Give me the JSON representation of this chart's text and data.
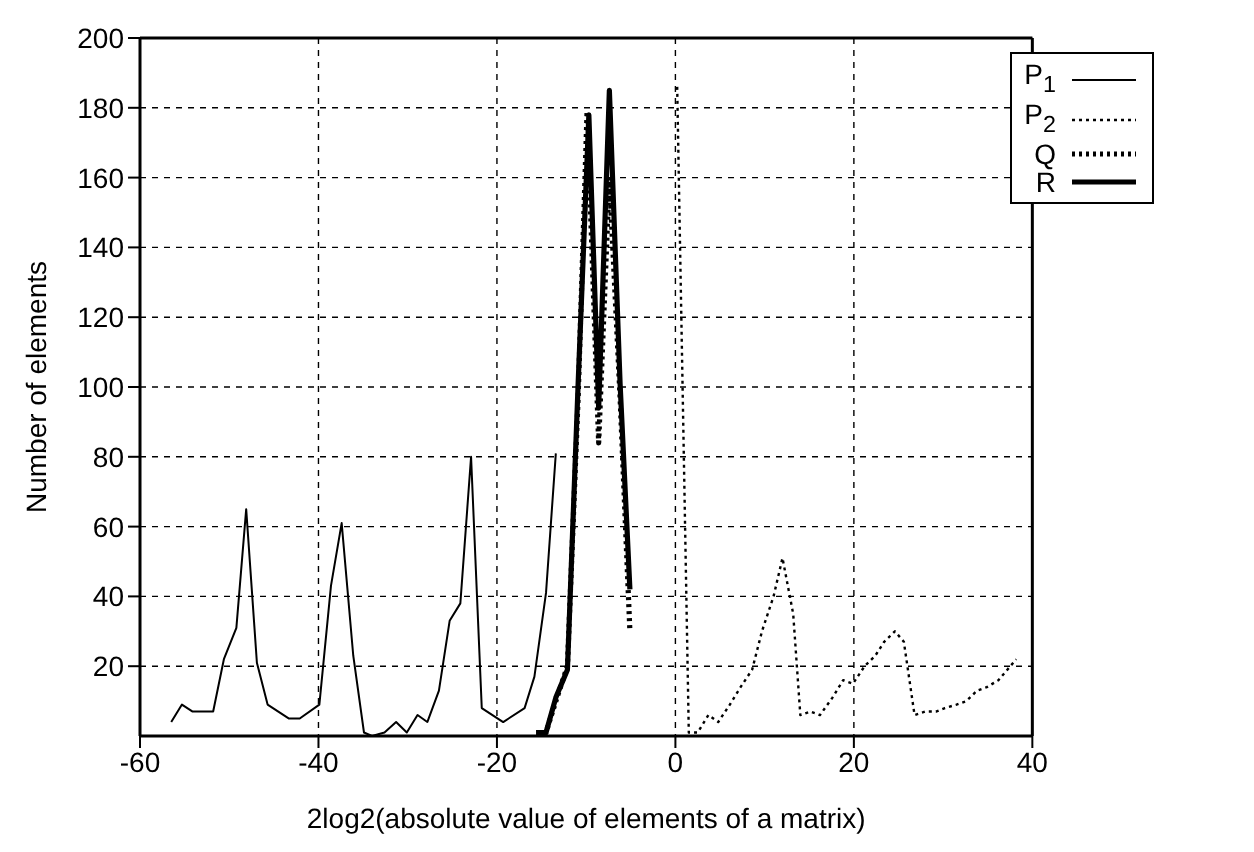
{
  "chart_data": {
    "type": "line",
    "xlabel": "2log2(absolute value of elements of a matrix)",
    "ylabel": "Number of elements",
    "xlim": [
      -60,
      40
    ],
    "xticks": [
      -60,
      -40,
      -20,
      0,
      20,
      40
    ],
    "ylim": [
      0,
      200
    ],
    "yticks": [
      20,
      40,
      60,
      80,
      100,
      120,
      140,
      160,
      180,
      200
    ],
    "grid": true,
    "legend": "top right",
    "marker": "none",
    "series": [
      {
        "name": "P$_{1}$",
        "color": "#000000",
        "line_style": "solid",
        "x": [
          -56.5,
          -55.3,
          -54.1,
          -51.8,
          -50.6,
          -49.2,
          -48.1,
          -46.9,
          -45.7,
          -43.3,
          -42.1,
          -39.9,
          -38.6,
          -37.4,
          -36.1,
          -34.9,
          -34.0,
          -32.6,
          -31.3,
          -30.1,
          -28.9,
          -27.8,
          -26.5,
          -25.3,
          -24.1,
          -22.9,
          -21.7,
          -19.3,
          -16.9,
          -15.8,
          -14.5,
          -13.4
        ],
        "values": [
          4,
          9,
          7,
          7,
          22,
          31,
          65,
          21,
          9,
          5,
          5,
          9,
          43,
          61,
          23,
          1,
          0,
          1,
          4,
          1,
          6,
          4,
          13,
          33,
          38,
          80,
          8,
          4,
          8,
          17,
          41,
          81
        ]
      },
      {
        "name": "P$_{2}$",
        "color": "#000000",
        "line_style": "dotted",
        "x": [
          0.2,
          1.5,
          2.5,
          3.7,
          4.8,
          6.1,
          7.3,
          8.6,
          9.7,
          11.0,
          12.0,
          13.2,
          14.0,
          15.1,
          16.2,
          17.6,
          18.8,
          19.9,
          21.2,
          22.4,
          23.4,
          24.6,
          25.6,
          26.8,
          28.0,
          29.2,
          30.2,
          31.5,
          32.6,
          33.8,
          34.9,
          36.2,
          37.2,
          38.2
        ],
        "values": [
          186,
          1,
          1,
          6,
          4,
          9,
          14,
          19,
          30,
          40,
          51,
          35,
          6,
          7,
          6,
          11,
          16,
          15,
          20,
          23,
          27,
          30,
          27,
          6,
          7,
          7,
          8,
          9,
          10,
          13,
          14,
          16,
          19,
          22
        ]
      },
      {
        "name": "Q",
        "color": "#000000",
        "line_style": "dotted",
        "x": [
          -15.6,
          -14.5,
          -13.4,
          -12.1,
          -10.9,
          -9.9,
          -8.6,
          -7.4,
          -6.2,
          -5.1
        ],
        "values": [
          1,
          1,
          10,
          20,
          97,
          179,
          84,
          160,
          97,
          30
        ]
      },
      {
        "name": "R",
        "color": "#000000",
        "line_style": "solid",
        "x": [
          -15.6,
          -14.5,
          -13.4,
          -12.1,
          -10.9,
          -9.7,
          -8.6,
          -7.4,
          -6.2,
          -5.1
        ],
        "values": [
          1,
          1,
          11,
          19,
          101,
          178,
          94,
          185,
          101,
          42
        ]
      }
    ]
  }
}
